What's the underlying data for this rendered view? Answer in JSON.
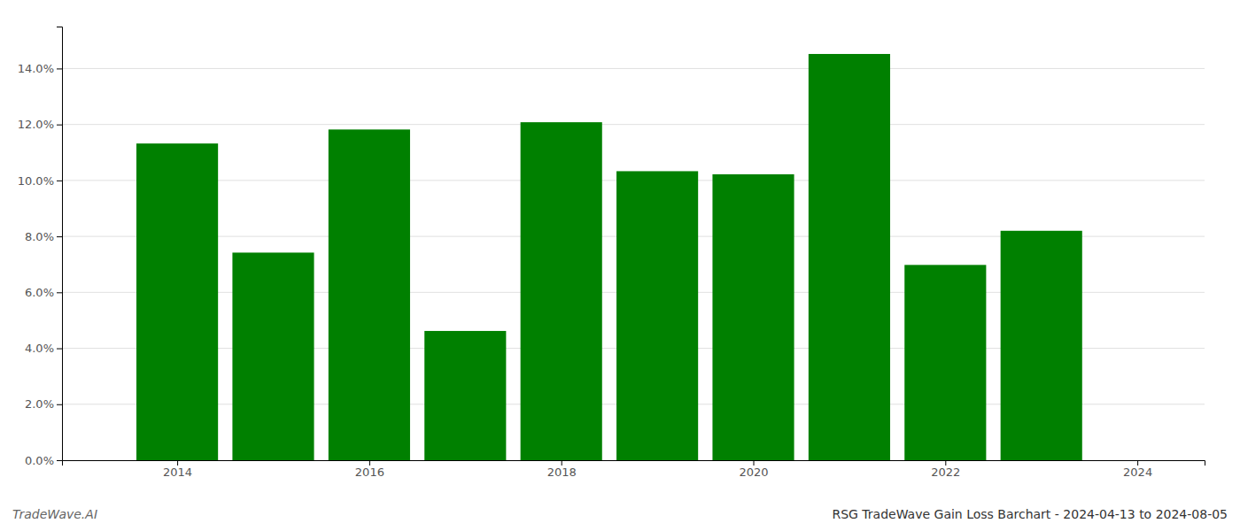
{
  "chart_data": {
    "type": "bar",
    "title": "RSG TradeWave Gain Loss Barchart - 2024-04-13 to 2024-08-05",
    "annotations": [
      "TradeWave.AI"
    ],
    "x": [
      2014,
      2015,
      2016,
      2017,
      2018,
      2019,
      2020,
      2021,
      2022,
      2023
    ],
    "values": [
      0.1132,
      0.0742,
      0.1182,
      0.0462,
      0.1208,
      0.1033,
      0.1022,
      0.1452,
      0.0698,
      0.082
    ],
    "color": "#008000",
    "xlim": [
      2012.8,
      2024.7
    ],
    "xticks": [
      2014,
      2016,
      2018,
      2020,
      2022,
      2024
    ],
    "ylim": [
      0,
      0.155
    ],
    "yticks": [
      {
        "value": 0.0,
        "label": "0.0%"
      },
      {
        "value": 0.02,
        "label": "2.0%"
      },
      {
        "value": 0.04,
        "label": "4.0%"
      },
      {
        "value": 0.06,
        "label": "6.0%"
      },
      {
        "value": 0.08,
        "label": "8.0%"
      },
      {
        "value": 0.1,
        "label": "10.0%"
      },
      {
        "value": 0.12,
        "label": "12.0%"
      },
      {
        "value": 0.14,
        "label": "14.0%"
      }
    ],
    "grid": true
  }
}
